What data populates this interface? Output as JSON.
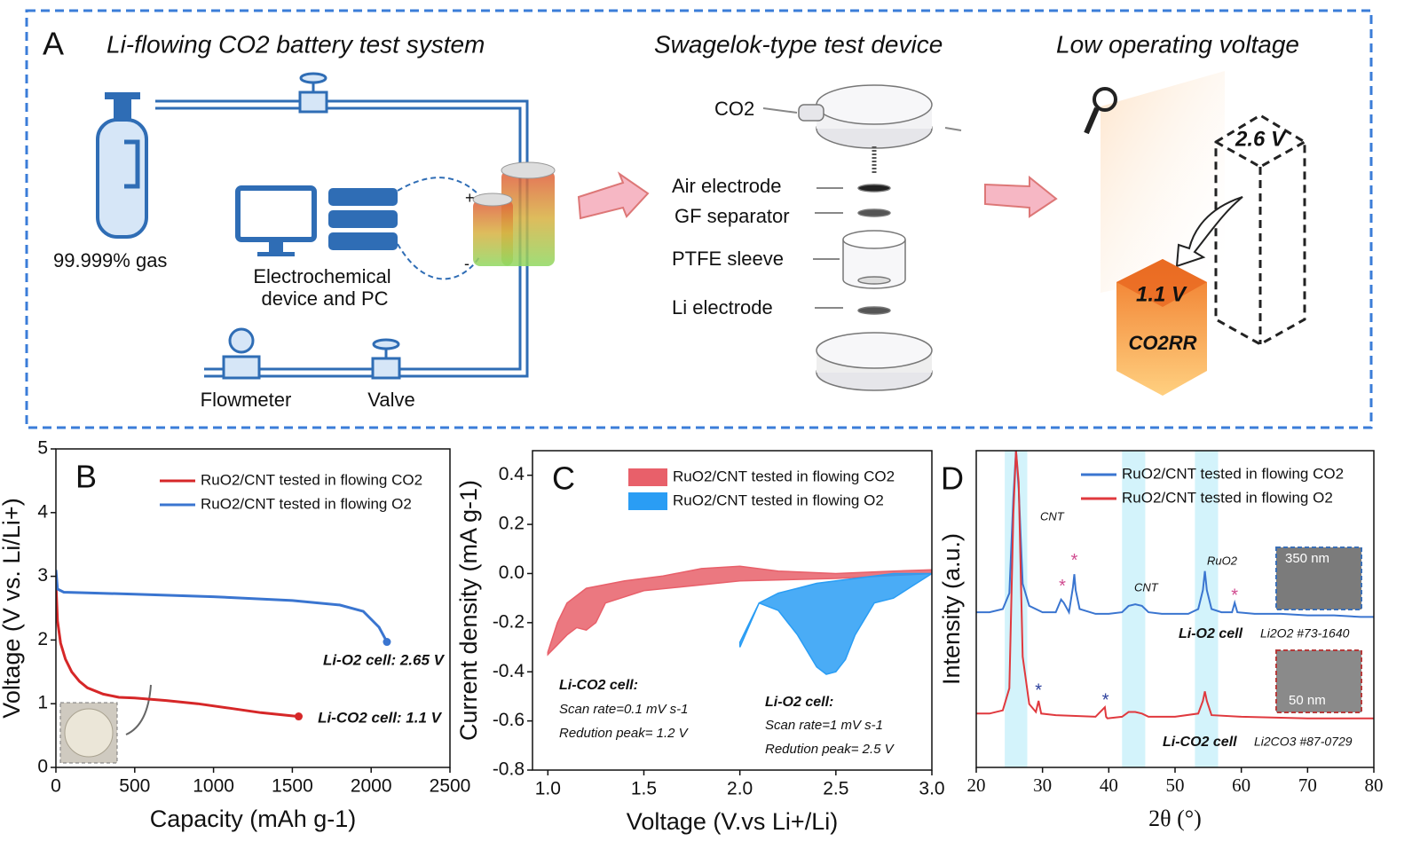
{
  "panel_a": {
    "label": "A",
    "titles": [
      "Li-flowing CO2 battery test system",
      "Swagelok-type test device",
      "Low operating voltage"
    ],
    "system_labels": [
      "99.999% gas",
      "Flowmeter",
      "Valve"
    ],
    "device_pc_lines": [
      "Electrochemical",
      "device and PC"
    ],
    "polarity": [
      "+",
      "-"
    ],
    "device_labels": [
      "CO2",
      "Air electrode",
      "GF separator",
      "PTFE sleeve",
      "Li electrode"
    ],
    "voltage_labels": [
      "2.6 V",
      "1.1 V",
      "CO2RR"
    ]
  },
  "chart_data": [
    {
      "type": "line",
      "label": "B",
      "xlabel": "Capacity (mAh g-1)",
      "ylabel": "Voltage (V vs. Li/Li+)",
      "xlim": [
        0,
        2500
      ],
      "xticks": [
        0,
        500,
        1000,
        1500,
        2000,
        2500
      ],
      "ylim": [
        0,
        5
      ],
      "yticks": [
        0,
        1,
        2,
        3,
        4,
        5
      ],
      "legend": "upper right",
      "series": [
        {
          "name": "RuO2/CNT tested in flowing CO2",
          "color": "#d62728",
          "x": [
            0,
            10,
            30,
            60,
            100,
            150,
            200,
            300,
            400,
            500,
            700,
            900,
            1100,
            1300,
            1540
          ],
          "values": [
            2.9,
            2.3,
            1.95,
            1.7,
            1.5,
            1.35,
            1.25,
            1.15,
            1.1,
            1.09,
            1.05,
            1.0,
            0.93,
            0.86,
            0.8
          ]
        },
        {
          "name": "RuO2/CNT tested in flowing O2",
          "color": "#3a75d0",
          "x": [
            0,
            10,
            50,
            200,
            500,
            1000,
            1500,
            1800,
            1950,
            2050,
            2100
          ],
          "values": [
            3.1,
            2.8,
            2.75,
            2.74,
            2.72,
            2.68,
            2.62,
            2.55,
            2.45,
            2.2,
            1.97
          ]
        }
      ],
      "annotations": [
        "Li-O2 cell: 2.65 V",
        "Li-CO2 cell: 1.1 V"
      ]
    },
    {
      "type": "area",
      "label": "C",
      "xlabel": "Voltage (V.vs Li+/Li)",
      "ylabel": "Current density (mA g-1)",
      "xlim": [
        0.92,
        3.0
      ],
      "xticks": [
        {
          "value": 1,
          "label": "1.0"
        },
        1.5,
        {
          "value": 2,
          "label": "2.0"
        },
        2.5,
        {
          "value": 3,
          "label": "3.0"
        }
      ],
      "ylim": [
        -0.8,
        0.5
      ],
      "yticks": [
        -0.8,
        -0.6,
        -0.4,
        -0.2,
        {
          "value": 0,
          "label": "0.0"
        },
        0.2,
        0.4
      ],
      "legend": "upper right",
      "series": [
        {
          "name": "RuO2/CNT tested in flowing CO2",
          "color": "#e8606a",
          "x": [
            1.0,
            1.05,
            1.1,
            1.2,
            1.4,
            1.6,
            1.8,
            2.0,
            2.2,
            2.5,
            2.8,
            3.0,
            3.0,
            2.5,
            2.0,
            1.5,
            1.3,
            1.25,
            1.2,
            1.15,
            1.1,
            1.05,
            1.0
          ],
          "values": [
            -0.32,
            -0.2,
            -0.12,
            -0.06,
            -0.03,
            -0.01,
            0.02,
            0.03,
            0.01,
            0.0,
            0.01,
            0.015,
            0.0,
            -0.02,
            -0.03,
            -0.07,
            -0.12,
            -0.2,
            -0.23,
            -0.22,
            -0.25,
            -0.29,
            -0.33
          ]
        },
        {
          "name": "RuO2/CNT tested in flowing O2",
          "color": "#2a9df4",
          "x": [
            2.0,
            2.1,
            2.2,
            2.3,
            2.4,
            2.5,
            2.6,
            2.7,
            2.8,
            2.9,
            3.0,
            3.0,
            2.9,
            2.8,
            2.7,
            2.6,
            2.55,
            2.5,
            2.45,
            2.4,
            2.3,
            2.2,
            2.1,
            2.0
          ],
          "values": [
            -0.28,
            -0.12,
            -0.08,
            -0.06,
            -0.04,
            -0.03,
            -0.02,
            -0.01,
            0.0,
            0.0,
            0.0,
            0.0,
            -0.05,
            -0.1,
            -0.12,
            -0.25,
            -0.35,
            -0.4,
            -0.41,
            -0.38,
            -0.25,
            -0.15,
            -0.12,
            -0.3
          ]
        }
      ],
      "annotations": [
        "Li-CO2 cell:",
        "Scan rate=0.1 mV s-1",
        "Redution peak= 1.2 V",
        "Li-O2 cell:",
        "Scan rate=1 mV s-1",
        "Redution peak= 2.5 V"
      ]
    },
    {
      "type": "line",
      "label": "D",
      "xlabel": "2θ (°)",
      "ylabel": "Intensity (a.u.)",
      "xlim": [
        20,
        80
      ],
      "xticks": [
        20,
        30,
        40,
        50,
        60,
        70,
        80
      ],
      "ylim": [
        0,
        100
      ],
      "legend": "upper right",
      "bands": [
        [
          24.3,
          27.7
        ],
        [
          42,
          45.5
        ],
        [
          53,
          56.5
        ]
      ],
      "series": [
        {
          "name": "RuO2/CNT tested in flowing CO2",
          "color": "#3a75d0",
          "x": [
            20,
            22,
            24,
            25,
            25.6,
            26,
            26.4,
            27,
            28,
            30,
            32,
            32.8,
            33.2,
            34,
            34.6,
            34.8,
            35,
            35.6,
            38,
            40,
            42,
            43,
            44,
            45,
            46,
            48,
            50,
            52,
            53.5,
            54.2,
            54.5,
            54.8,
            55.5,
            57,
            58.6,
            59,
            59.4,
            62,
            66,
            70,
            74,
            78,
            80
          ],
          "values": [
            49,
            49,
            50,
            55,
            85,
            100,
            88,
            58,
            51,
            49,
            49,
            53,
            52,
            49,
            57,
            61,
            56,
            50,
            48.5,
            48.5,
            49,
            51,
            51.5,
            51,
            49,
            48.5,
            48.5,
            48.5,
            50,
            56,
            62,
            56,
            50,
            49,
            49,
            52,
            49,
            48.5,
            48.5,
            48,
            48,
            47.5,
            47.5
          ]
        },
        {
          "name": "RuO2/CNT tested in flowing O2",
          "color": "#e0393e",
          "x": [
            20,
            22,
            24,
            25,
            25.6,
            26,
            26.4,
            27,
            28,
            29,
            29.4,
            29.8,
            32,
            38,
            39.4,
            39.6,
            39.8,
            42,
            43,
            44,
            45,
            46,
            50,
            53.5,
            54.2,
            54.5,
            54.8,
            55.5,
            60,
            70,
            80
          ],
          "values": [
            17,
            17,
            18,
            25,
            80,
            100,
            90,
            35,
            20,
            17.5,
            21,
            17,
            16.5,
            16,
            19,
            16,
            15.5,
            16,
            17.5,
            17.5,
            17,
            16,
            16,
            17,
            21,
            24,
            21,
            16.5,
            16,
            15.5,
            15.5
          ]
        }
      ],
      "peak_markers": [
        {
          "x": 33,
          "y": 57,
          "label": "*",
          "color": "#d04a8f"
        },
        {
          "x": 34.8,
          "y": 65,
          "label": "*",
          "color": "#d04a8f"
        },
        {
          "x": 59,
          "y": 54,
          "label": "*",
          "color": "#d04a8f"
        },
        {
          "x": 29.4,
          "y": 24,
          "label": "*",
          "color": "#2b3f9c"
        },
        {
          "x": 39.5,
          "y": 21,
          "label": "*",
          "color": "#2b3f9c"
        }
      ],
      "annotations": [
        "CNT",
        "CNT",
        "RuO2",
        "Li-O2 cell",
        "Li2O2 #73-1640",
        "Li-CO2 cell",
        "Li2CO3 #87-0729",
        "350 nm",
        "50 nm"
      ]
    }
  ]
}
